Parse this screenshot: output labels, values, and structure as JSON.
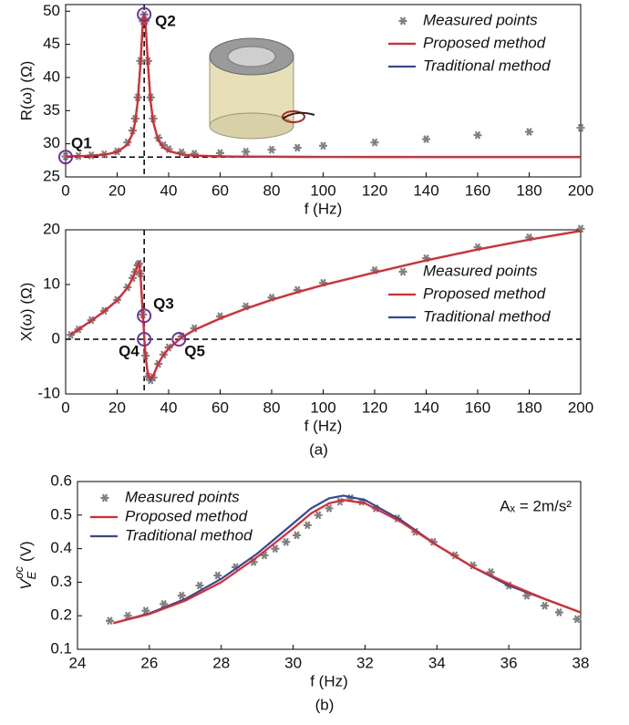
{
  "chart_data": [
    {
      "type": "line",
      "xlabel": "f (Hz)",
      "ylabel": "R(ω) (Ω)",
      "xlim": [
        0,
        200
      ],
      "xticks": [
        0,
        20,
        40,
        60,
        80,
        100,
        120,
        140,
        160,
        180,
        200
      ],
      "ylim": [
        25,
        51
      ],
      "yticks": [
        25,
        30,
        35,
        40,
        45,
        50
      ],
      "legend": "upper right",
      "ref_lines": [
        {
          "axis": "y",
          "value": 28
        },
        {
          "axis": "x",
          "value": 30.5
        }
      ],
      "annotations": [
        {
          "label": "Q1",
          "x": 0,
          "y": 28
        },
        {
          "label": "Q2",
          "x": 30.5,
          "y": 49.5
        }
      ],
      "series": [
        {
          "name": "Measured points",
          "mode": "markers",
          "color": "#808080",
          "x": [
            0,
            5,
            10,
            15,
            20,
            24,
            26,
            27,
            28,
            29,
            30,
            30.5,
            31,
            32,
            33,
            34,
            36,
            38,
            40,
            45,
            50,
            60,
            70,
            80,
            90,
            100,
            120,
            140,
            160,
            180,
            200
          ],
          "values": [
            28.1,
            28.15,
            28.25,
            28.4,
            28.85,
            30.2,
            32,
            33.8,
            37,
            42.5,
            48.5,
            49.5,
            48.5,
            42.5,
            37,
            33.8,
            30.9,
            29.8,
            29.2,
            28.7,
            28.5,
            28.6,
            28.8,
            29.1,
            29.4,
            29.7,
            30.2,
            30.7,
            31.3,
            31.8,
            32.4
          ]
        },
        {
          "name": "Proposed method",
          "mode": "lines",
          "color": "#e8262a",
          "x": [
            0,
            5,
            10,
            15,
            20,
            24,
            26,
            27,
            28,
            29,
            30,
            30.5,
            31,
            32,
            33,
            34,
            36,
            38,
            40,
            45,
            50,
            60,
            70,
            80,
            90,
            100,
            120,
            140,
            160,
            180,
            200
          ],
          "values": [
            28.09,
            28.13,
            28.2,
            28.35,
            28.75,
            29.86,
            31.55,
            33.3,
            36.4,
            41.76,
            48.2,
            49.5,
            48.2,
            41.76,
            36.4,
            33.3,
            30.5,
            29.43,
            28.91,
            28.4,
            28.22,
            28.1,
            28.06,
            28.04,
            28.03,
            28.02,
            28.01,
            28,
            28,
            28,
            28
          ]
        },
        {
          "name": "Traditional method",
          "mode": "lines",
          "color": "#2e4a9e",
          "x": [
            0,
            5,
            10,
            15,
            20,
            24,
            26,
            27,
            28,
            29,
            30,
            30.5,
            31,
            32,
            33,
            34,
            36,
            38,
            40,
            45,
            50,
            60,
            70,
            80,
            90,
            100,
            120,
            140,
            160,
            180,
            200
          ],
          "values": [
            28.09,
            28.13,
            28.2,
            28.35,
            28.75,
            29.86,
            31.55,
            33.3,
            36.4,
            41.76,
            48.4,
            49.7,
            48.4,
            41.76,
            36.4,
            33.3,
            30.5,
            29.43,
            28.91,
            28.4,
            28.22,
            28.1,
            28.06,
            28.04,
            28.03,
            28.02,
            28.01,
            28,
            28,
            28,
            28
          ]
        }
      ]
    },
    {
      "type": "line",
      "xlabel": "f (Hz)",
      "ylabel": "X(ω) (Ω)",
      "caption": "(a)",
      "xlim": [
        0,
        200
      ],
      "xticks": [
        0,
        20,
        40,
        60,
        80,
        100,
        120,
        140,
        160,
        180,
        200
      ],
      "ylim": [
        -10,
        20
      ],
      "yticks": [
        -10,
        0,
        10,
        20
      ],
      "legend": "center right",
      "ref_lines": [
        {
          "axis": "y",
          "value": 0
        },
        {
          "axis": "x",
          "value": 30.5
        }
      ],
      "annotations": [
        {
          "label": "Q3",
          "x": 30.5,
          "y": 4.3
        },
        {
          "label": "Q4",
          "x": 30.5,
          "y": 0
        },
        {
          "label": "Q5",
          "x": 44,
          "y": 0
        }
      ],
      "series": [
        {
          "name": "Measured points",
          "mode": "markers",
          "color": "#808080",
          "x": [
            2,
            5,
            10,
            15,
            20,
            24,
            26,
            27,
            28,
            28.5,
            29,
            30,
            31,
            32,
            33,
            34,
            36,
            38,
            40,
            45,
            50,
            60,
            70,
            80,
            90,
            100,
            120,
            140,
            160,
            180,
            200
          ],
          "values": [
            0.8,
            1.8,
            3.5,
            5.2,
            7.2,
            9.5,
            11.2,
            12.3,
            13.5,
            13.8,
            12,
            4.5,
            -3,
            -6.8,
            -7.5,
            -7,
            -4.5,
            -2.8,
            -1.5,
            0.5,
            2,
            4.2,
            6,
            7.6,
            9,
            10.3,
            12.6,
            14.8,
            16.8,
            18.6,
            20.2
          ]
        },
        {
          "name": "Proposed method",
          "mode": "lines",
          "color": "#e8262a",
          "x": [
            2,
            5,
            10,
            15,
            20,
            24,
            26,
            27,
            28,
            28.5,
            29,
            30,
            31,
            32,
            33,
            34,
            36,
            38,
            40,
            45,
            50,
            60,
            70,
            80,
            90,
            100,
            120,
            140,
            160,
            180,
            200
          ],
          "values": [
            0.8,
            1.8,
            3.4,
            5.1,
            7.1,
            9.4,
            11.1,
            12.3,
            13.6,
            13.9,
            12.2,
            4.5,
            -3,
            -6.6,
            -7.2,
            -6.7,
            -4.4,
            -2.9,
            -1.7,
            0.3,
            1.7,
            3.8,
            5.6,
            7.2,
            8.6,
            9.9,
            12.2,
            14.4,
            16.4,
            18.2,
            19.8
          ]
        },
        {
          "name": "Traditional method",
          "mode": "lines",
          "color": "#2e4a9e",
          "x": [
            2,
            5,
            10,
            15,
            20,
            24,
            26,
            27,
            28,
            28.5,
            29,
            30,
            31,
            32,
            33,
            34,
            36,
            38,
            40,
            45,
            50,
            60,
            70,
            80,
            90,
            100,
            120,
            140,
            160,
            180,
            200
          ],
          "values": [
            0.8,
            1.8,
            3.4,
            5.1,
            7.1,
            9.4,
            11.1,
            12.3,
            13.6,
            14,
            12.2,
            4.5,
            -3,
            -6.6,
            -7.4,
            -6.7,
            -4.4,
            -2.9,
            -1.7,
            0.3,
            1.7,
            3.8,
            5.6,
            7.2,
            8.6,
            9.9,
            12.2,
            14.4,
            16.4,
            18.2,
            19.8
          ]
        }
      ]
    },
    {
      "type": "line",
      "xlabel": "f (Hz)",
      "ylabel": {
        "text": "V",
        "sub": "E",
        "sup": "oc",
        "unit": "(V)"
      },
      "caption": "(b)",
      "note": "Aₓ = 2m/s²",
      "xlim": [
        24,
        38
      ],
      "xticks": [
        24,
        26,
        28,
        30,
        32,
        34,
        36,
        38
      ],
      "ylim": [
        0.1,
        0.6
      ],
      "yticks": [
        0.1,
        0.2,
        0.3,
        0.4,
        0.5,
        0.6
      ],
      "legend": "upper left",
      "ref_lines": [],
      "annotations": [],
      "series": [
        {
          "name": "Measured points",
          "mode": "markers",
          "color": "#808080",
          "x": [
            24.9,
            25.4,
            25.9,
            26.4,
            26.9,
            27.4,
            27.9,
            28.4,
            28.9,
            29.2,
            29.5,
            29.8,
            30.1,
            30.4,
            30.7,
            31,
            31.3,
            31.6,
            31.9,
            32.3,
            32.9,
            33.4,
            33.9,
            34.5,
            35,
            35.5,
            36,
            36.5,
            37,
            37.4,
            37.9
          ],
          "values": [
            0.185,
            0.2,
            0.215,
            0.235,
            0.26,
            0.29,
            0.32,
            0.345,
            0.36,
            0.38,
            0.4,
            0.42,
            0.44,
            0.47,
            0.5,
            0.52,
            0.54,
            0.55,
            0.54,
            0.52,
            0.49,
            0.45,
            0.42,
            0.38,
            0.35,
            0.33,
            0.29,
            0.26,
            0.23,
            0.21,
            0.19
          ]
        },
        {
          "name": "Proposed method",
          "mode": "lines",
          "color": "#e8262a",
          "x": [
            25,
            26,
            27,
            28,
            29,
            30,
            30.5,
            31,
            31.4,
            32,
            33,
            34,
            35,
            36,
            37,
            38
          ],
          "values": [
            0.178,
            0.205,
            0.245,
            0.3,
            0.375,
            0.46,
            0.505,
            0.535,
            0.545,
            0.535,
            0.48,
            0.41,
            0.345,
            0.295,
            0.25,
            0.21
          ]
        },
        {
          "name": "Traditional method",
          "mode": "lines",
          "color": "#2e4a9e",
          "x": [
            25,
            26,
            27,
            28,
            29,
            30,
            30.5,
            31,
            31.4,
            32,
            33,
            34,
            35,
            36,
            37,
            38
          ],
          "values": [
            0.178,
            0.207,
            0.25,
            0.31,
            0.385,
            0.475,
            0.52,
            0.55,
            0.558,
            0.545,
            0.485,
            0.41,
            0.345,
            0.29,
            0.25,
            0.21
          ]
        }
      ]
    }
  ]
}
